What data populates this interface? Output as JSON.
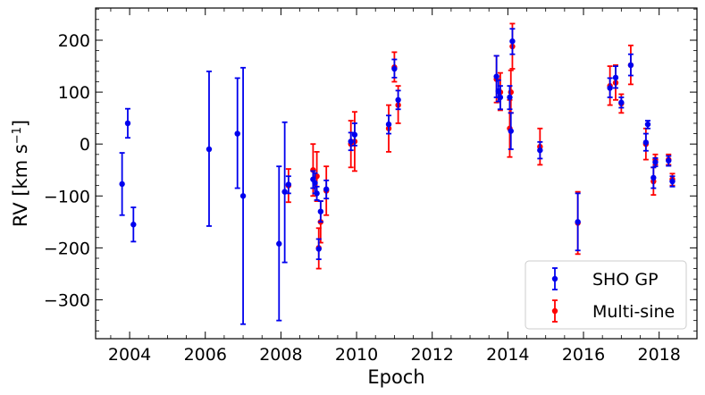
{
  "chart_data": {
    "type": "scatter",
    "xlabel": "Epoch",
    "ylabel_main": "RV [km s",
    "ylabel_sup": "−1",
    "ylabel_close": "]",
    "xlim": [
      2003.1,
      2019.0
    ],
    "ylim": [
      -375,
      262
    ],
    "xticks": [
      2004,
      2006,
      2008,
      2010,
      2012,
      2014,
      2016,
      2018
    ],
    "yticks": [
      -300,
      -200,
      -100,
      0,
      100,
      200
    ],
    "ytick_labels": [
      "−300",
      "−200",
      "−100",
      "0",
      "100",
      "200"
    ],
    "legend_position": "lower-right",
    "series": [
      {
        "name": "SHO GP",
        "color": "#0000ee",
        "points": [
          {
            "x": 2003.8,
            "y": -77,
            "lo": -137,
            "hi": -17
          },
          {
            "x": 2003.95,
            "y": 40,
            "lo": 12,
            "hi": 68
          },
          {
            "x": 2004.1,
            "y": -155,
            "lo": -188,
            "hi": -122
          },
          {
            "x": 2006.1,
            "y": -10,
            "lo": -158,
            "hi": 140
          },
          {
            "x": 2006.85,
            "y": 20,
            "lo": -85,
            "hi": 127
          },
          {
            "x": 2007.0,
            "y": -100,
            "lo": -347,
            "hi": 147
          },
          {
            "x": 2007.95,
            "y": -192,
            "lo": -340,
            "hi": -43
          },
          {
            "x": 2008.1,
            "y": -92,
            "lo": -228,
            "hi": 42
          },
          {
            "x": 2008.2,
            "y": -78,
            "lo": -95,
            "hi": -62
          },
          {
            "x": 2008.85,
            "y": -68,
            "lo": -85,
            "hi": -52
          },
          {
            "x": 2008.9,
            "y": -75,
            "lo": -95,
            "hi": -56
          },
          {
            "x": 2008.95,
            "y": -95,
            "lo": -108,
            "hi": -82
          },
          {
            "x": 2009.0,
            "y": -202,
            "lo": -222,
            "hi": -183
          },
          {
            "x": 2009.05,
            "y": -130,
            "lo": -150,
            "hi": -110
          },
          {
            "x": 2009.2,
            "y": -87,
            "lo": -105,
            "hi": -70
          },
          {
            "x": 2009.85,
            "y": 5,
            "lo": -12,
            "hi": 22
          },
          {
            "x": 2009.95,
            "y": 18,
            "lo": -3,
            "hi": 40
          },
          {
            "x": 2010.85,
            "y": 38,
            "lo": 20,
            "hi": 55
          },
          {
            "x": 2011.0,
            "y": 145,
            "lo": 128,
            "hi": 163
          },
          {
            "x": 2011.1,
            "y": 85,
            "lo": 67,
            "hi": 103
          },
          {
            "x": 2013.7,
            "y": 130,
            "lo": 90,
            "hi": 170
          },
          {
            "x": 2013.75,
            "y": 102,
            "lo": 82,
            "hi": 123
          },
          {
            "x": 2013.8,
            "y": 90,
            "lo": 67,
            "hi": 112
          },
          {
            "x": 2014.05,
            "y": 90,
            "lo": 67,
            "hi": 112
          },
          {
            "x": 2014.08,
            "y": 25,
            "lo": -10,
            "hi": 60
          },
          {
            "x": 2014.12,
            "y": 198,
            "lo": 173,
            "hi": 222
          },
          {
            "x": 2014.85,
            "y": -12,
            "lo": -28,
            "hi": 4
          },
          {
            "x": 2015.85,
            "y": -150,
            "lo": -205,
            "hi": -95
          },
          {
            "x": 2016.7,
            "y": 108,
            "lo": 90,
            "hi": 127
          },
          {
            "x": 2016.85,
            "y": 128,
            "lo": 108,
            "hi": 150
          },
          {
            "x": 2017.0,
            "y": 80,
            "lo": 70,
            "hi": 90
          },
          {
            "x": 2017.25,
            "y": 152,
            "lo": 132,
            "hi": 173
          },
          {
            "x": 2017.65,
            "y": 3,
            "lo": -13,
            "hi": 20
          },
          {
            "x": 2017.7,
            "y": 38,
            "lo": 30,
            "hi": 45
          },
          {
            "x": 2017.85,
            "y": -65,
            "lo": -85,
            "hi": -45
          },
          {
            "x": 2017.9,
            "y": -35,
            "lo": -43,
            "hi": -27
          },
          {
            "x": 2018.25,
            "y": -32,
            "lo": -42,
            "hi": -23
          },
          {
            "x": 2018.35,
            "y": -72,
            "lo": -82,
            "hi": -62
          }
        ]
      },
      {
        "name": "Multi-sine",
        "color": "#ff0000",
        "points": [
          {
            "x": 2008.2,
            "y": -80,
            "lo": -112,
            "hi": -48
          },
          {
            "x": 2008.85,
            "y": -50,
            "lo": -100,
            "hi": 0
          },
          {
            "x": 2008.95,
            "y": -62,
            "lo": -110,
            "hi": -15
          },
          {
            "x": 2009.05,
            "y": -150,
            "lo": -190,
            "hi": -110
          },
          {
            "x": 2009.0,
            "y": -200,
            "lo": -240,
            "hi": -162
          },
          {
            "x": 2009.2,
            "y": -90,
            "lo": -137,
            "hi": -43
          },
          {
            "x": 2009.85,
            "y": 0,
            "lo": -45,
            "hi": 45
          },
          {
            "x": 2009.95,
            "y": 5,
            "lo": -52,
            "hi": 62
          },
          {
            "x": 2010.85,
            "y": 30,
            "lo": -15,
            "hi": 75
          },
          {
            "x": 2011.0,
            "y": 148,
            "lo": 120,
            "hi": 177
          },
          {
            "x": 2011.1,
            "y": 75,
            "lo": 40,
            "hi": 112
          },
          {
            "x": 2013.7,
            "y": 125,
            "lo": 80,
            "hi": 170
          },
          {
            "x": 2013.8,
            "y": 100,
            "lo": 65,
            "hi": 137
          },
          {
            "x": 2014.05,
            "y": 30,
            "lo": -25,
            "hi": 85
          },
          {
            "x": 2014.08,
            "y": 100,
            "lo": 60,
            "hi": 142
          },
          {
            "x": 2014.12,
            "y": 188,
            "lo": 145,
            "hi": 232
          },
          {
            "x": 2014.85,
            "y": -5,
            "lo": -40,
            "hi": 30
          },
          {
            "x": 2015.85,
            "y": -152,
            "lo": -212,
            "hi": -92
          },
          {
            "x": 2016.7,
            "y": 112,
            "lo": 75,
            "hi": 150
          },
          {
            "x": 2016.85,
            "y": 118,
            "lo": 85,
            "hi": 152
          },
          {
            "x": 2017.0,
            "y": 78,
            "lo": 60,
            "hi": 96
          },
          {
            "x": 2017.25,
            "y": 152,
            "lo": 115,
            "hi": 190
          },
          {
            "x": 2017.65,
            "y": 0,
            "lo": -30,
            "hi": 30
          },
          {
            "x": 2017.85,
            "y": -72,
            "lo": -98,
            "hi": -45
          },
          {
            "x": 2017.9,
            "y": -30,
            "lo": -40,
            "hi": -20
          },
          {
            "x": 2018.25,
            "y": -30,
            "lo": -40,
            "hi": -20
          },
          {
            "x": 2018.35,
            "y": -68,
            "lo": -80,
            "hi": -57
          }
        ]
      }
    ]
  }
}
